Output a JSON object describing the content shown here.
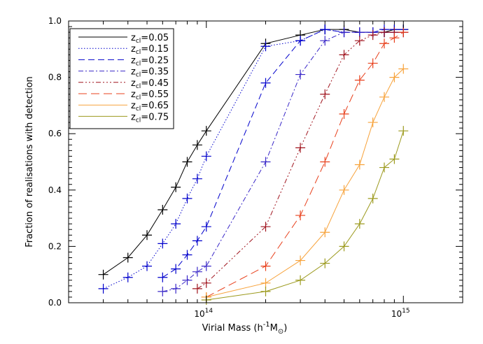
{
  "chart_data": {
    "type": "line",
    "xscale": "log",
    "xlim": [
      20000000000000.0,
      2000000000000000.0
    ],
    "ylim": [
      0,
      1.0
    ],
    "xlabel": "Virial Mass (h",
    "xlabel_sup": "-1",
    "xlabel_mid": "M",
    "xlabel_sub": "⊙",
    "xlabel_end": ")",
    "ylabel": "Fraction of realisations with detection",
    "x_ticks": [
      {
        "value": 100000000000000.0,
        "base": "10",
        "exp": "14"
      },
      {
        "value": 1000000000000000.0,
        "base": "10",
        "exp": "15"
      }
    ],
    "y_ticks": [
      {
        "value": 0.0,
        "label": "0.0"
      },
      {
        "value": 0.2,
        "label": "0.2"
      },
      {
        "value": 0.4,
        "label": "0.4"
      },
      {
        "value": 0.6,
        "label": "0.6"
      },
      {
        "value": 0.8,
        "label": "0.8"
      },
      {
        "value": 1.0,
        "label": "1.0"
      }
    ],
    "legend_position": "top-left",
    "series": [
      {
        "name": "z_cl=0.05",
        "z": "0.05",
        "color": "#000000",
        "dash": "",
        "x": [
          30000000000000.0,
          40000000000000.0,
          50000000000000.0,
          60000000000000.0,
          70000000000000.0,
          80000000000000.0,
          90000000000000.0,
          100000000000000.0,
          200000000000000.0,
          300000000000000.0,
          400000000000000.0,
          500000000000000.0,
          600000000000000.0,
          700000000000000.0,
          800000000000000.0,
          900000000000000.0,
          1000000000000000.0
        ],
        "y": [
          0.1,
          0.16,
          0.24,
          0.33,
          0.41,
          0.5,
          0.56,
          0.61,
          0.92,
          0.95,
          0.97,
          0.97,
          0.96,
          0.96,
          0.96,
          0.97,
          0.97
        ]
      },
      {
        "name": "z_cl=0.15",
        "z": "0.15",
        "color": "#0000cc",
        "dash": "1.5,2.5",
        "x": [
          30000000000000.0,
          40000000000000.0,
          50000000000000.0,
          60000000000000.0,
          70000000000000.0,
          80000000000000.0,
          90000000000000.0,
          100000000000000.0,
          200000000000000.0,
          300000000000000.0,
          400000000000000.0,
          500000000000000.0,
          600000000000000.0,
          700000000000000.0,
          800000000000000.0,
          900000000000000.0,
          1000000000000000.0
        ],
        "y": [
          0.05,
          0.09,
          0.13,
          0.21,
          0.28,
          0.37,
          0.44,
          0.52,
          0.91,
          0.93,
          0.97,
          0.96,
          0.96,
          0.96,
          0.96,
          0.96,
          0.96
        ]
      },
      {
        "name": "z_cl=0.25",
        "z": "0.25",
        "color": "#0000cc",
        "dash": "9,5",
        "x": [
          60000000000000.0,
          70000000000000.0,
          80000000000000.0,
          90000000000000.0,
          100000000000000.0,
          200000000000000.0,
          300000000000000.0,
          400000000000000.0,
          500000000000000.0,
          600000000000000.0,
          700000000000000.0,
          800000000000000.0,
          900000000000000.0,
          1000000000000000.0
        ],
        "y": [
          0.09,
          0.12,
          0.17,
          0.22,
          0.27,
          0.78,
          0.93,
          0.97,
          0.96,
          0.96,
          0.96,
          0.97,
          0.97,
          0.97
        ]
      },
      {
        "name": "z_cl=0.35",
        "z": "0.35",
        "color": "#3a28c8",
        "dash": "7,3,2,3",
        "x": [
          60000000000000.0,
          70000000000000.0,
          80000000000000.0,
          90000000000000.0,
          100000000000000.0,
          200000000000000.0,
          300000000000000.0,
          400000000000000.0,
          500000000000000.0,
          600000000000000.0,
          700000000000000.0,
          800000000000000.0,
          900000000000000.0,
          1000000000000000.0
        ],
        "y": [
          0.04,
          0.05,
          0.08,
          0.11,
          0.13,
          0.5,
          0.81,
          0.93,
          0.96,
          0.96,
          0.96,
          0.96,
          0.96,
          0.96
        ]
      },
      {
        "name": "z_cl=0.45",
        "z": "0.45",
        "color": "#a0141e",
        "dash": "7,3,2,3,2,3,2,3",
        "x": [
          90000000000000.0,
          100000000000000.0,
          200000000000000.0,
          300000000000000.0,
          400000000000000.0,
          500000000000000.0,
          600000000000000.0,
          700000000000000.0,
          800000000000000.0,
          900000000000000.0,
          1000000000000000.0
        ],
        "y": [
          0.05,
          0.07,
          0.27,
          0.55,
          0.74,
          0.88,
          0.93,
          0.95,
          0.96,
          0.96,
          0.96
        ]
      },
      {
        "name": "z_cl=0.55",
        "z": "0.55",
        "color": "#e8401c",
        "dash": "12,6",
        "x": [
          100000000000000.0,
          200000000000000.0,
          300000000000000.0,
          400000000000000.0,
          500000000000000.0,
          600000000000000.0,
          700000000000000.0,
          800000000000000.0,
          900000000000000.0,
          1000000000000000.0
        ],
        "y": [
          0.02,
          0.13,
          0.31,
          0.5,
          0.67,
          0.79,
          0.85,
          0.92,
          0.94,
          0.96
        ]
      },
      {
        "name": "z_cl=0.65",
        "z": "0.65",
        "color": "#f7a23a",
        "dash": "",
        "x": [
          100000000000000.0,
          200000000000000.0,
          300000000000000.0,
          400000000000000.0,
          500000000000000.0,
          600000000000000.0,
          700000000000000.0,
          800000000000000.0,
          900000000000000.0,
          1000000000000000.0
        ],
        "y": [
          0.02,
          0.07,
          0.15,
          0.25,
          0.4,
          0.49,
          0.64,
          0.73,
          0.8,
          0.83
        ]
      },
      {
        "name": "z_cl=0.75",
        "z": "0.75",
        "color": "#9c9a1e",
        "dash": "",
        "x": [
          100000000000000.0,
          200000000000000.0,
          300000000000000.0,
          400000000000000.0,
          500000000000000.0,
          600000000000000.0,
          700000000000000.0,
          800000000000000.0,
          900000000000000.0,
          1000000000000000.0
        ],
        "y": [
          0.01,
          0.04,
          0.08,
          0.14,
          0.2,
          0.28,
          0.37,
          0.48,
          0.51,
          0.61
        ]
      }
    ]
  }
}
